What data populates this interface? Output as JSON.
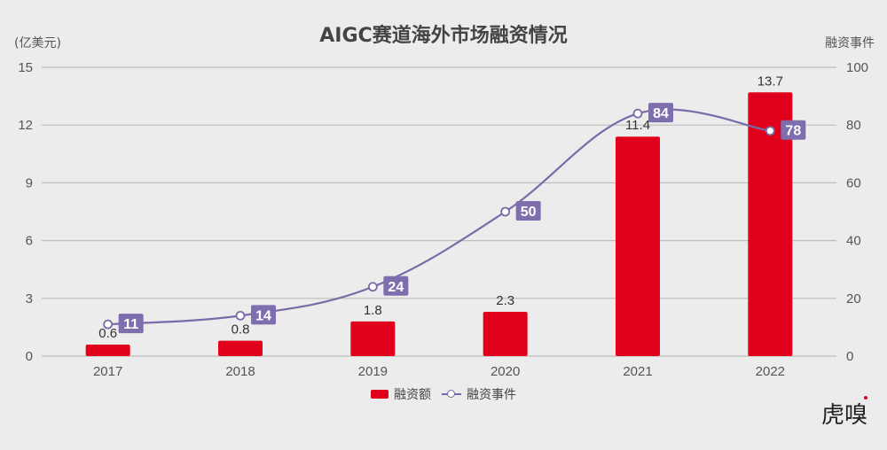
{
  "title": "AIGC赛道海外市场融资情况",
  "left_axis_unit": "(亿美元)",
  "right_axis_unit": "融资事件",
  "legend": {
    "bar_label": "融资额",
    "line_label": "融资事件"
  },
  "watermark": "虎嗅",
  "colors": {
    "bar": "#e0001b",
    "line": "#7a6aa8",
    "label_box": "#7f6eae",
    "grid": "#bdbdbd",
    "background": "#ececec"
  },
  "chart_data": {
    "type": "bar+line",
    "title": "AIGC赛道海外市场融资情况",
    "categories": [
      "2017",
      "2018",
      "2019",
      "2020",
      "2021",
      "2022"
    ],
    "series": [
      {
        "name": "融资额",
        "type": "bar",
        "axis": "left",
        "values": [
          0.6,
          0.8,
          1.8,
          2.3,
          11.4,
          13.7
        ]
      },
      {
        "name": "融资事件",
        "type": "line",
        "axis": "right",
        "values": [
          11,
          14,
          24,
          50,
          84,
          78
        ]
      }
    ],
    "ylabel_left": "(亿美元)",
    "ylabel_right": "融资事件",
    "ylim_left": [
      0,
      15
    ],
    "yticks_left": [
      0,
      3,
      6,
      9,
      12,
      15
    ],
    "ylim_right": [
      0,
      100
    ],
    "yticks_right": [
      0,
      20,
      40,
      60,
      80,
      100
    ],
    "grid": true,
    "legend_position": "bottom"
  }
}
